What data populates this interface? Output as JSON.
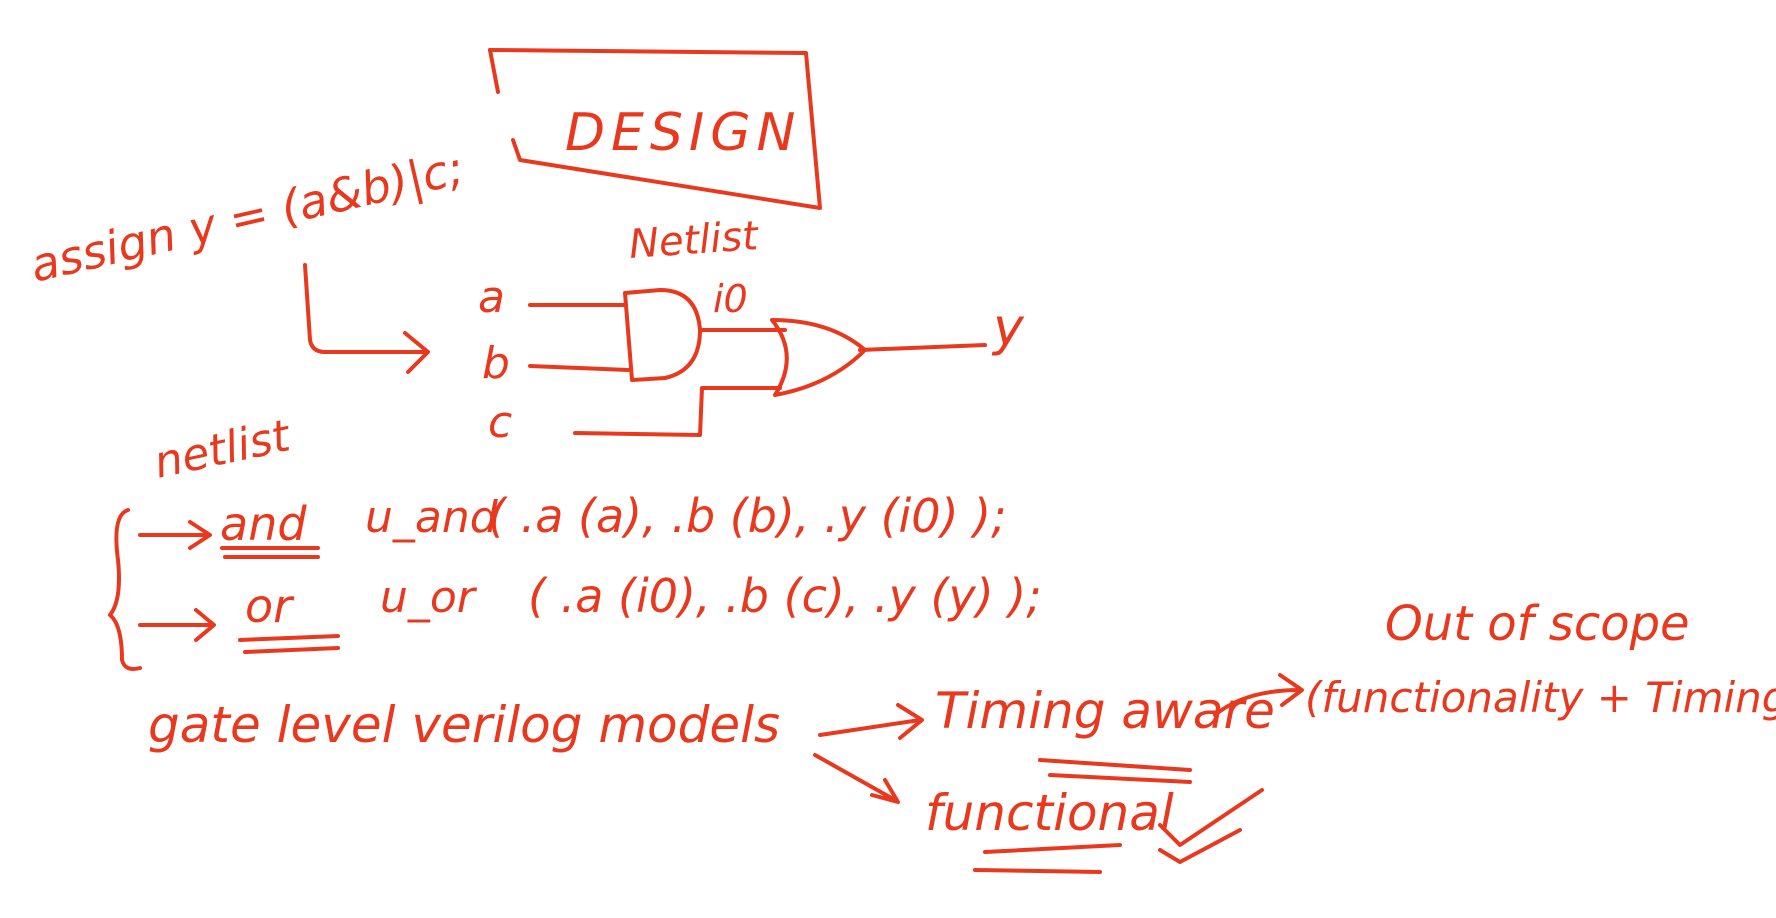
{
  "ink_color": "#e8391f",
  "background": "#ffffff",
  "title_box": {
    "text": "DESIGN"
  },
  "assign_statement": "assign y = (a&b)|c;",
  "netlist_label_top": "Netlist",
  "netlist_label_left": "netlist",
  "schematic": {
    "inputs": [
      "a",
      "b",
      "c"
    ],
    "internal_wire": "i0",
    "output": "y",
    "gates": [
      "and",
      "or"
    ]
  },
  "netlist_lines": [
    {
      "keyword": "and",
      "instance": "u_and",
      "ports": "( .a (a), .b (b), .y (i0) );"
    },
    {
      "keyword": "or",
      "instance": "u_or",
      "ports": "( .a (i0), .b (c), .y (y) );"
    }
  ],
  "gate_level_text": "gate level verilog models",
  "timing_aware_text": "Timing aware",
  "functional_text": "functional",
  "out_of_scope_text": "Out of scope",
  "out_of_scope_detail": "(functionality + Timing)",
  "check_icon": "check-icon"
}
